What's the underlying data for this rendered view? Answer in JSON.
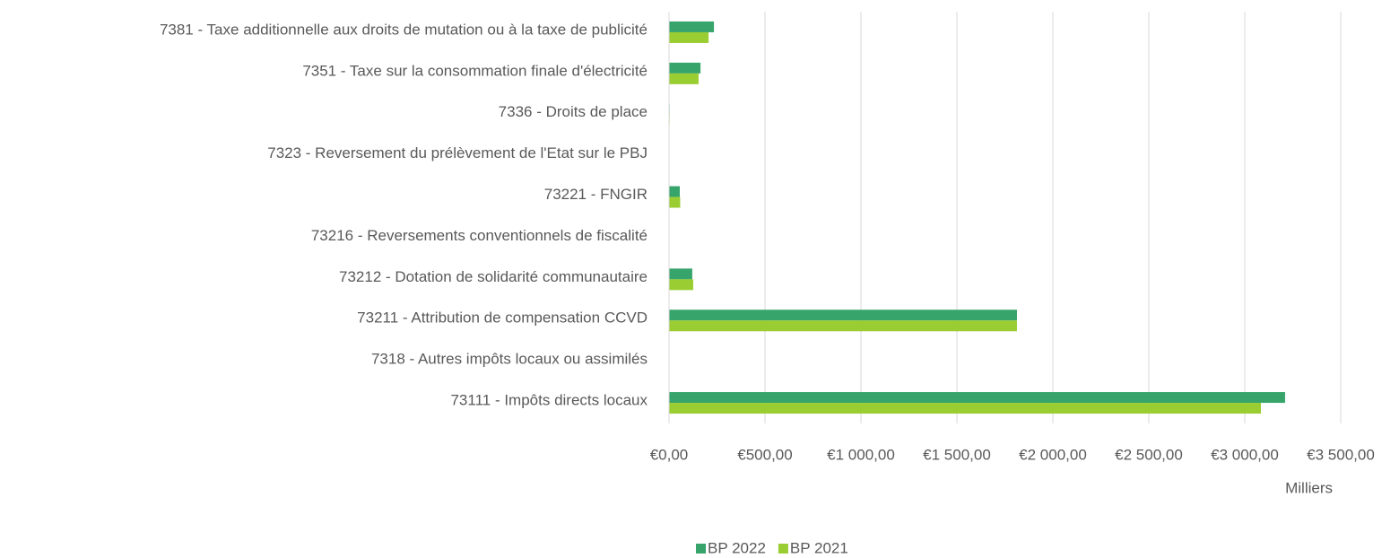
{
  "chart_data": {
    "type": "hbar",
    "categories": [
      "7381 - Taxe additionnelle aux droits de mutation ou à la taxe de publicité",
      "7351 - Taxe sur la consommation finale d'électricité",
      "7336 - Droits de place",
      "7323 - Reversement du prélèvement de l'Etat sur le PBJ",
      "73221 - FNGIR",
      "73216 - Reversements conventionnels de fiscalité",
      "73212 - Dotation de solidarité communautaire",
      "73211 - Attribution de compensation CCVD",
      "7318 - Autres impôts locaux ou assimilés",
      "73111 - Impôts directs locaux"
    ],
    "series": [
      {
        "name": "BP 2022",
        "color": "#36a46b",
        "values": [
          234,
          164,
          3,
          0,
          56,
          2,
          121,
          1813,
          0,
          3210
        ]
      },
      {
        "name": "BP 2021",
        "color": "#9acd32",
        "values": [
          206,
          154,
          3,
          0,
          58,
          2,
          126,
          1813,
          0,
          3084
        ]
      }
    ],
    "xlim": [
      0,
      3500
    ],
    "xticks": [
      {
        "value": 0,
        "label": "€0,00"
      },
      {
        "value": 500,
        "label": "€500,00"
      },
      {
        "value": 1000,
        "label": "€1 000,00"
      },
      {
        "value": 1500,
        "label": "€1 500,00"
      },
      {
        "value": 2000,
        "label": "€2 000,00"
      },
      {
        "value": 2500,
        "label": "€2 500,00"
      },
      {
        "value": 3000,
        "label": "€3 000,00"
      },
      {
        "value": 3500,
        "label": "€3 500,00"
      }
    ],
    "x_label": "Milliers",
    "grid": true,
    "legend": "bottom"
  }
}
